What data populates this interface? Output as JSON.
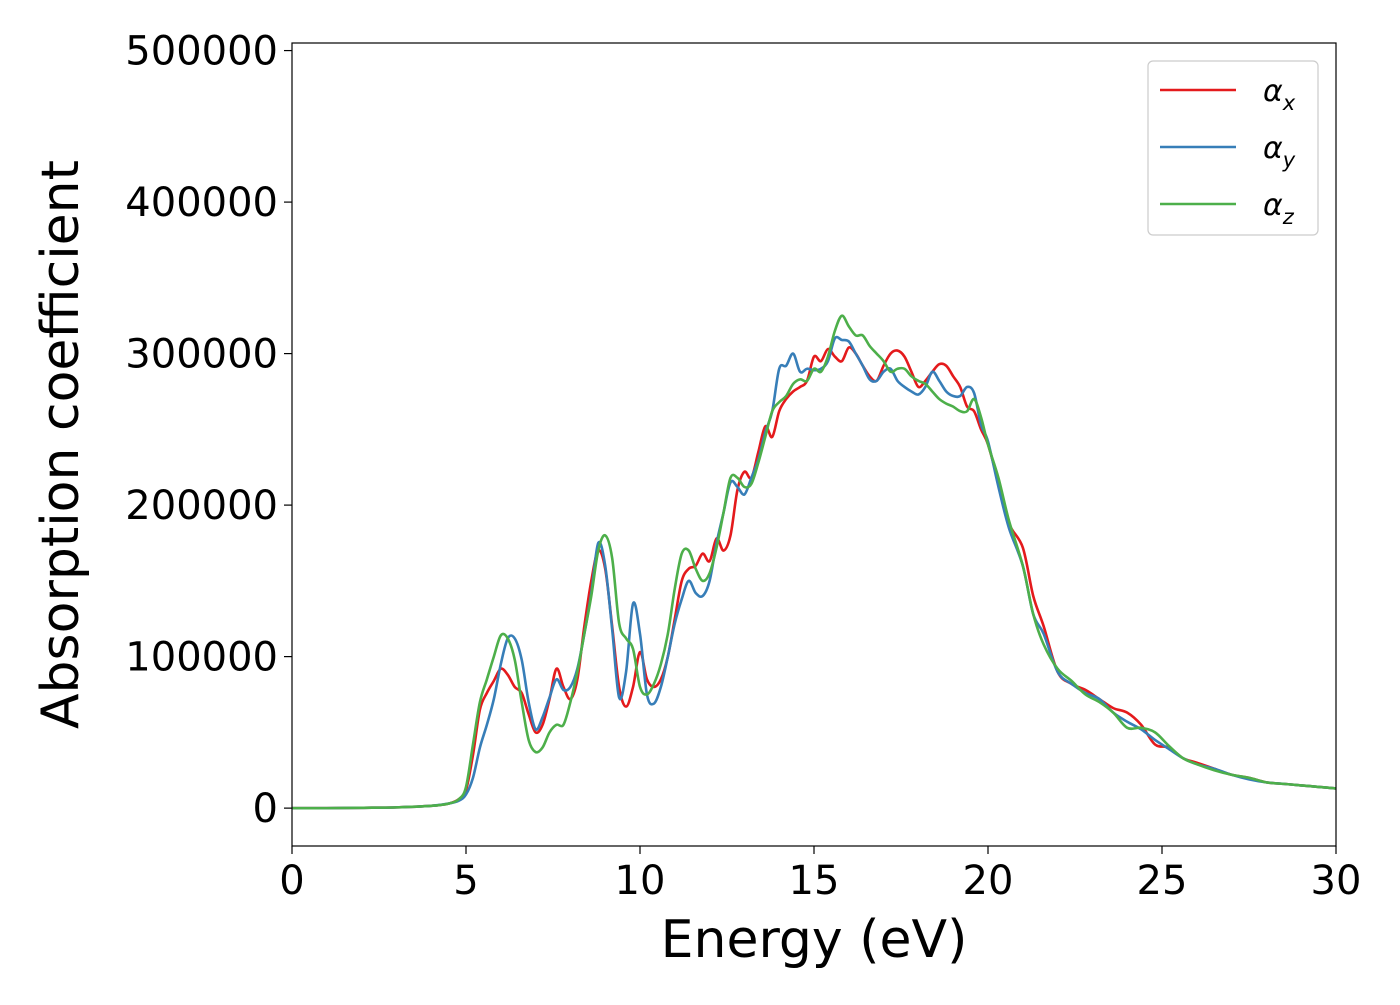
{
  "chart_data": {
    "type": "line",
    "title": "",
    "xlabel": "Energy (eV)",
    "ylabel": "Absorption coefficient",
    "xlim": [
      0,
      30
    ],
    "ylim": [
      -25000,
      505000
    ],
    "xticks": [
      0,
      5,
      10,
      15,
      20,
      25,
      30
    ],
    "yticks": [
      0,
      100000,
      200000,
      300000,
      400000,
      500000
    ],
    "xtick_labels": [
      "0",
      "5",
      "10",
      "15",
      "20",
      "25",
      "30"
    ],
    "ytick_labels": [
      "0",
      "100000",
      "200000",
      "300000",
      "400000",
      "500000"
    ],
    "grid": false,
    "legend_position": "top-right",
    "x": [
      0,
      1,
      2,
      3,
      4,
      4.5,
      4.8,
      5.0,
      5.2,
      5.4,
      5.6,
      5.8,
      6.0,
      6.2,
      6.4,
      6.6,
      6.8,
      7.0,
      7.2,
      7.4,
      7.6,
      7.8,
      8.0,
      8.2,
      8.4,
      8.6,
      8.8,
      9.0,
      9.2,
      9.4,
      9.6,
      9.8,
      10.0,
      10.2,
      10.4,
      10.6,
      10.8,
      11.0,
      11.2,
      11.4,
      11.6,
      11.8,
      12.0,
      12.2,
      12.4,
      12.6,
      12.8,
      13.0,
      13.2,
      13.4,
      13.6,
      13.8,
      14.0,
      14.2,
      14.4,
      14.6,
      14.8,
      15.0,
      15.2,
      15.4,
      15.6,
      15.8,
      16.0,
      16.2,
      16.4,
      16.6,
      16.8,
      17.0,
      17.2,
      17.4,
      17.6,
      17.8,
      18.0,
      18.2,
      18.4,
      18.6,
      18.8,
      19.0,
      19.2,
      19.4,
      19.6,
      19.8,
      20.0,
      20.3,
      20.6,
      21.0,
      21.3,
      21.6,
      22.0,
      22.4,
      22.8,
      23.2,
      23.6,
      24.0,
      24.4,
      24.8,
      25.2,
      25.6,
      26.0,
      26.5,
      27.0,
      27.5,
      28.0,
      28.5,
      29.0,
      29.5,
      30.0
    ],
    "series": [
      {
        "name": "α_x",
        "name_base": "α",
        "name_sub": "x",
        "color": "#e41a1c",
        "values": [
          0,
          0,
          200,
          500,
          1500,
          3000,
          6000,
          12000,
          35000,
          65000,
          76000,
          84000,
          92000,
          88000,
          80000,
          76000,
          62000,
          50000,
          55000,
          72000,
          92000,
          80000,
          72000,
          85000,
          120000,
          150000,
          170000,
          158000,
          120000,
          80000,
          67000,
          80000,
          103000,
          85000,
          80000,
          85000,
          100000,
          125000,
          150000,
          158000,
          160000,
          168000,
          163000,
          178000,
          170000,
          180000,
          210000,
          222000,
          218000,
          235000,
          252000,
          245000,
          262000,
          270000,
          275000,
          278000,
          282000,
          298000,
          295000,
          303000,
          298000,
          295000,
          304000,
          300000,
          292000,
          285000,
          282000,
          292000,
          300000,
          302000,
          298000,
          288000,
          278000,
          282000,
          288000,
          293000,
          292000,
          285000,
          278000,
          265000,
          262000,
          250000,
          240000,
          215000,
          188000,
          172000,
          140000,
          120000,
          90000,
          82000,
          78000,
          72000,
          66000,
          63000,
          55000,
          42000,
          40000,
          33000,
          30000,
          26000,
          22000,
          20000,
          17000,
          16000,
          15000,
          14000,
          13000
        ]
      },
      {
        "name": "α_y",
        "name_base": "α",
        "name_sub": "y",
        "color": "#377eb8",
        "values": [
          0,
          0,
          200,
          500,
          1500,
          3000,
          5000,
          9000,
          20000,
          40000,
          55000,
          72000,
          95000,
          112000,
          112000,
          98000,
          70000,
          52000,
          60000,
          73000,
          85000,
          78000,
          80000,
          92000,
          115000,
          142000,
          175000,
          160000,
          118000,
          73000,
          90000,
          135000,
          115000,
          75000,
          69000,
          80000,
          100000,
          122000,
          138000,
          150000,
          142000,
          140000,
          150000,
          175000,
          195000,
          215000,
          212000,
          207000,
          218000,
          230000,
          248000,
          262000,
          290000,
          292000,
          300000,
          288000,
          290000,
          289000,
          290000,
          295000,
          310000,
          309000,
          308000,
          300000,
          292000,
          283000,
          282000,
          288000,
          290000,
          282000,
          278000,
          275000,
          273000,
          278000,
          288000,
          282000,
          275000,
          272000,
          272000,
          278000,
          274000,
          253000,
          242000,
          212000,
          185000,
          160000,
          128000,
          115000,
          90000,
          82000,
          76000,
          72000,
          63000,
          57000,
          52000,
          45000,
          39000,
          33000,
          29000,
          26000,
          22000,
          19000,
          17000,
          16000,
          15000,
          14000,
          13000
        ]
      },
      {
        "name": "α_z",
        "name_base": "α",
        "name_sub": "z",
        "color": "#4daf4a",
        "values": [
          0,
          0,
          200,
          500,
          1500,
          3000,
          6000,
          14000,
          42000,
          70000,
          85000,
          100000,
          114000,
          112000,
          98000,
          70000,
          45000,
          37000,
          40000,
          50000,
          55000,
          55000,
          70000,
          90000,
          115000,
          140000,
          170000,
          180000,
          165000,
          122000,
          112000,
          105000,
          80000,
          75000,
          82000,
          95000,
          115000,
          145000,
          168000,
          170000,
          158000,
          150000,
          155000,
          172000,
          195000,
          218000,
          218000,
          212000,
          214000,
          228000,
          245000,
          262000,
          268000,
          272000,
          280000,
          283000,
          282000,
          290000,
          288000,
          298000,
          315000,
          325000,
          318000,
          312000,
          312000,
          305000,
          300000,
          295000,
          288000,
          290000,
          290000,
          285000,
          282000,
          280000,
          275000,
          270000,
          267000,
          265000,
          262000,
          262000,
          270000,
          258000,
          240000,
          218000,
          190000,
          160000,
          128000,
          108000,
          92000,
          84000,
          75000,
          70000,
          63000,
          53000,
          53000,
          50000,
          41000,
          33000,
          29000,
          25000,
          22000,
          20000,
          17000,
          16000,
          15000,
          14000,
          13000
        ]
      }
    ]
  }
}
